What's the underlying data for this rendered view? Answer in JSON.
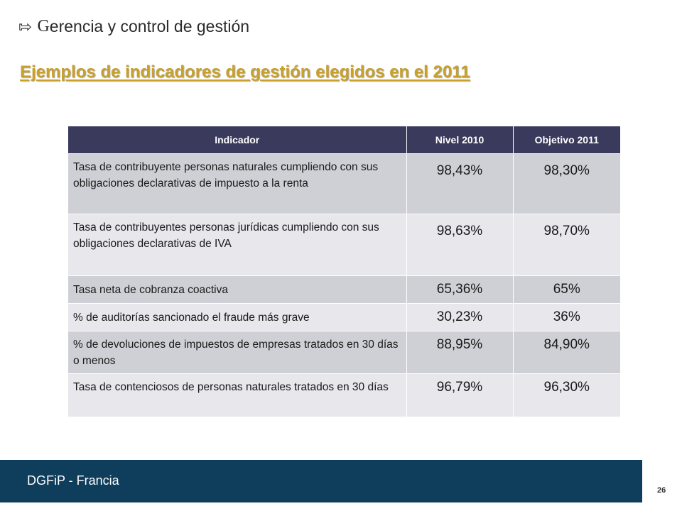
{
  "header": {
    "arrow_glyph": "⇰",
    "title_first_letter": "G",
    "title_rest": "erencia y control de gestión"
  },
  "subtitle": "Ejemplos de indicadores de gestión elegidos en el 2011",
  "table": {
    "headers": [
      "Indicador",
      "Nivel 2010",
      "Objetivo 2011"
    ],
    "rows": [
      {
        "indicator": "Tasa de contribuyente personas naturales cumpliendo con sus obligaciones declarativas de impuesto a la renta",
        "level_2010": "98,43%",
        "target_2011": "98,30%"
      },
      {
        "indicator": "Tasa de contribuyentes personas jurídicas cumpliendo con sus obligaciones declarativas de IVA",
        "level_2010": "98,63%",
        "target_2011": "98,70%"
      },
      {
        "indicator": "Tasa neta de cobranza coactiva",
        "level_2010": "65,36%",
        "target_2011": "65%"
      },
      {
        "indicator": "% de auditorías sancionado el fraude más grave",
        "level_2010": "30,23%",
        "target_2011": "36%"
      },
      {
        "indicator": "% de devoluciones de impuestos de empresas tratados en 30 días o menos",
        "level_2010": "88,95%",
        "target_2011": "84,90%"
      },
      {
        "indicator": "Tasa de contenciosos de personas naturales tratados en 30 días",
        "level_2010": "96,79%",
        "target_2011": "96,30%"
      }
    ]
  },
  "footer": {
    "organization": "DGFiP - Francia"
  },
  "page_number": "26",
  "colors": {
    "subtitle": "#c8a02c",
    "table_header": "#3a3b5c",
    "row_dark": "#cfcfd6",
    "row_light": "#e7e7ec",
    "footer": "#0f3d5c"
  }
}
